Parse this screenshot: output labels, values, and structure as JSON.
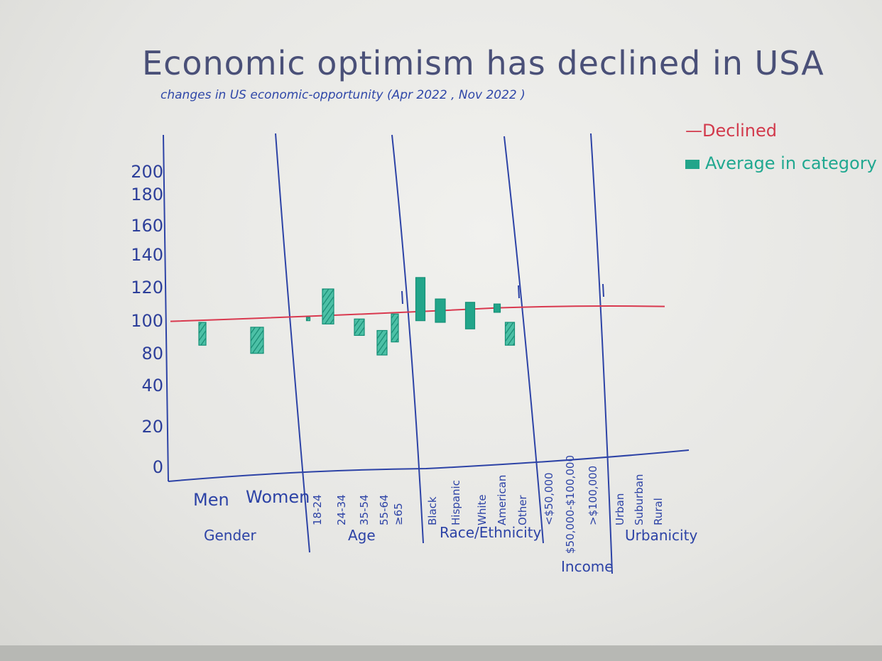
{
  "title": "Economic optimism has declined in USA",
  "subtitle": "changes in US economic-opportunity (Apr 2022 , Nov 2022 )",
  "legend": {
    "declined": "—Declined",
    "average": "Average in category"
  },
  "colors": {
    "declined": "#d9394f",
    "average": "#22a58a",
    "ink": "#2d43a6"
  },
  "chart_data": {
    "type": "bar",
    "title": "Economic optimism has declined in USA",
    "subtitle": "changes in US economic-opportunity (Apr 2022 , Nov 2022 )",
    "y_ticks": [
      "0",
      "20",
      "40",
      "80",
      "100",
      "120",
      "140",
      "160",
      "180",
      "200"
    ],
    "groups": [
      {
        "name": "Gender",
        "categories": [
          "Men",
          "Women"
        ]
      },
      {
        "name": "Age",
        "categories": [
          "18-24",
          "24-34",
          "35-54",
          "55-64",
          "≥65"
        ]
      },
      {
        "name": "Race/Ethnicity",
        "categories": [
          "Black",
          "Hispanic",
          "White",
          "American",
          "Other"
        ]
      },
      {
        "name": "Income",
        "categories": [
          "<$50,000",
          "$50,000-$100,000",
          ">$100,000"
        ]
      },
      {
        "name": "Urbanicity",
        "categories": [
          "Urban",
          "Suburban",
          "Rural"
        ]
      }
    ],
    "series": [
      {
        "name": "Average in category",
        "bars": [
          {
            "category": "Men",
            "low": 86,
            "high": 100
          },
          {
            "category": "Women",
            "low": 81,
            "high": 97
          },
          {
            "category": "18-24",
            "low": 101,
            "high": 103
          },
          {
            "category": "18-24",
            "low": 99,
            "high": 120
          },
          {
            "category": "24-34",
            "low": 92,
            "high": 102
          },
          {
            "category": "35-54",
            "low": 80,
            "high": 95
          },
          {
            "category": "55-64",
            "low": 88,
            "high": 105
          },
          {
            "category": "Black",
            "low": 101,
            "high": 127
          },
          {
            "category": "Hispanic",
            "low": 100,
            "high": 114
          },
          {
            "category": "White",
            "low": 96,
            "high": 112
          },
          {
            "category": "American",
            "low": 106,
            "high": 111
          },
          {
            "category": "Other",
            "low": 86,
            "high": 100
          }
        ]
      },
      {
        "name": "Declined",
        "value": 101
      }
    ]
  }
}
